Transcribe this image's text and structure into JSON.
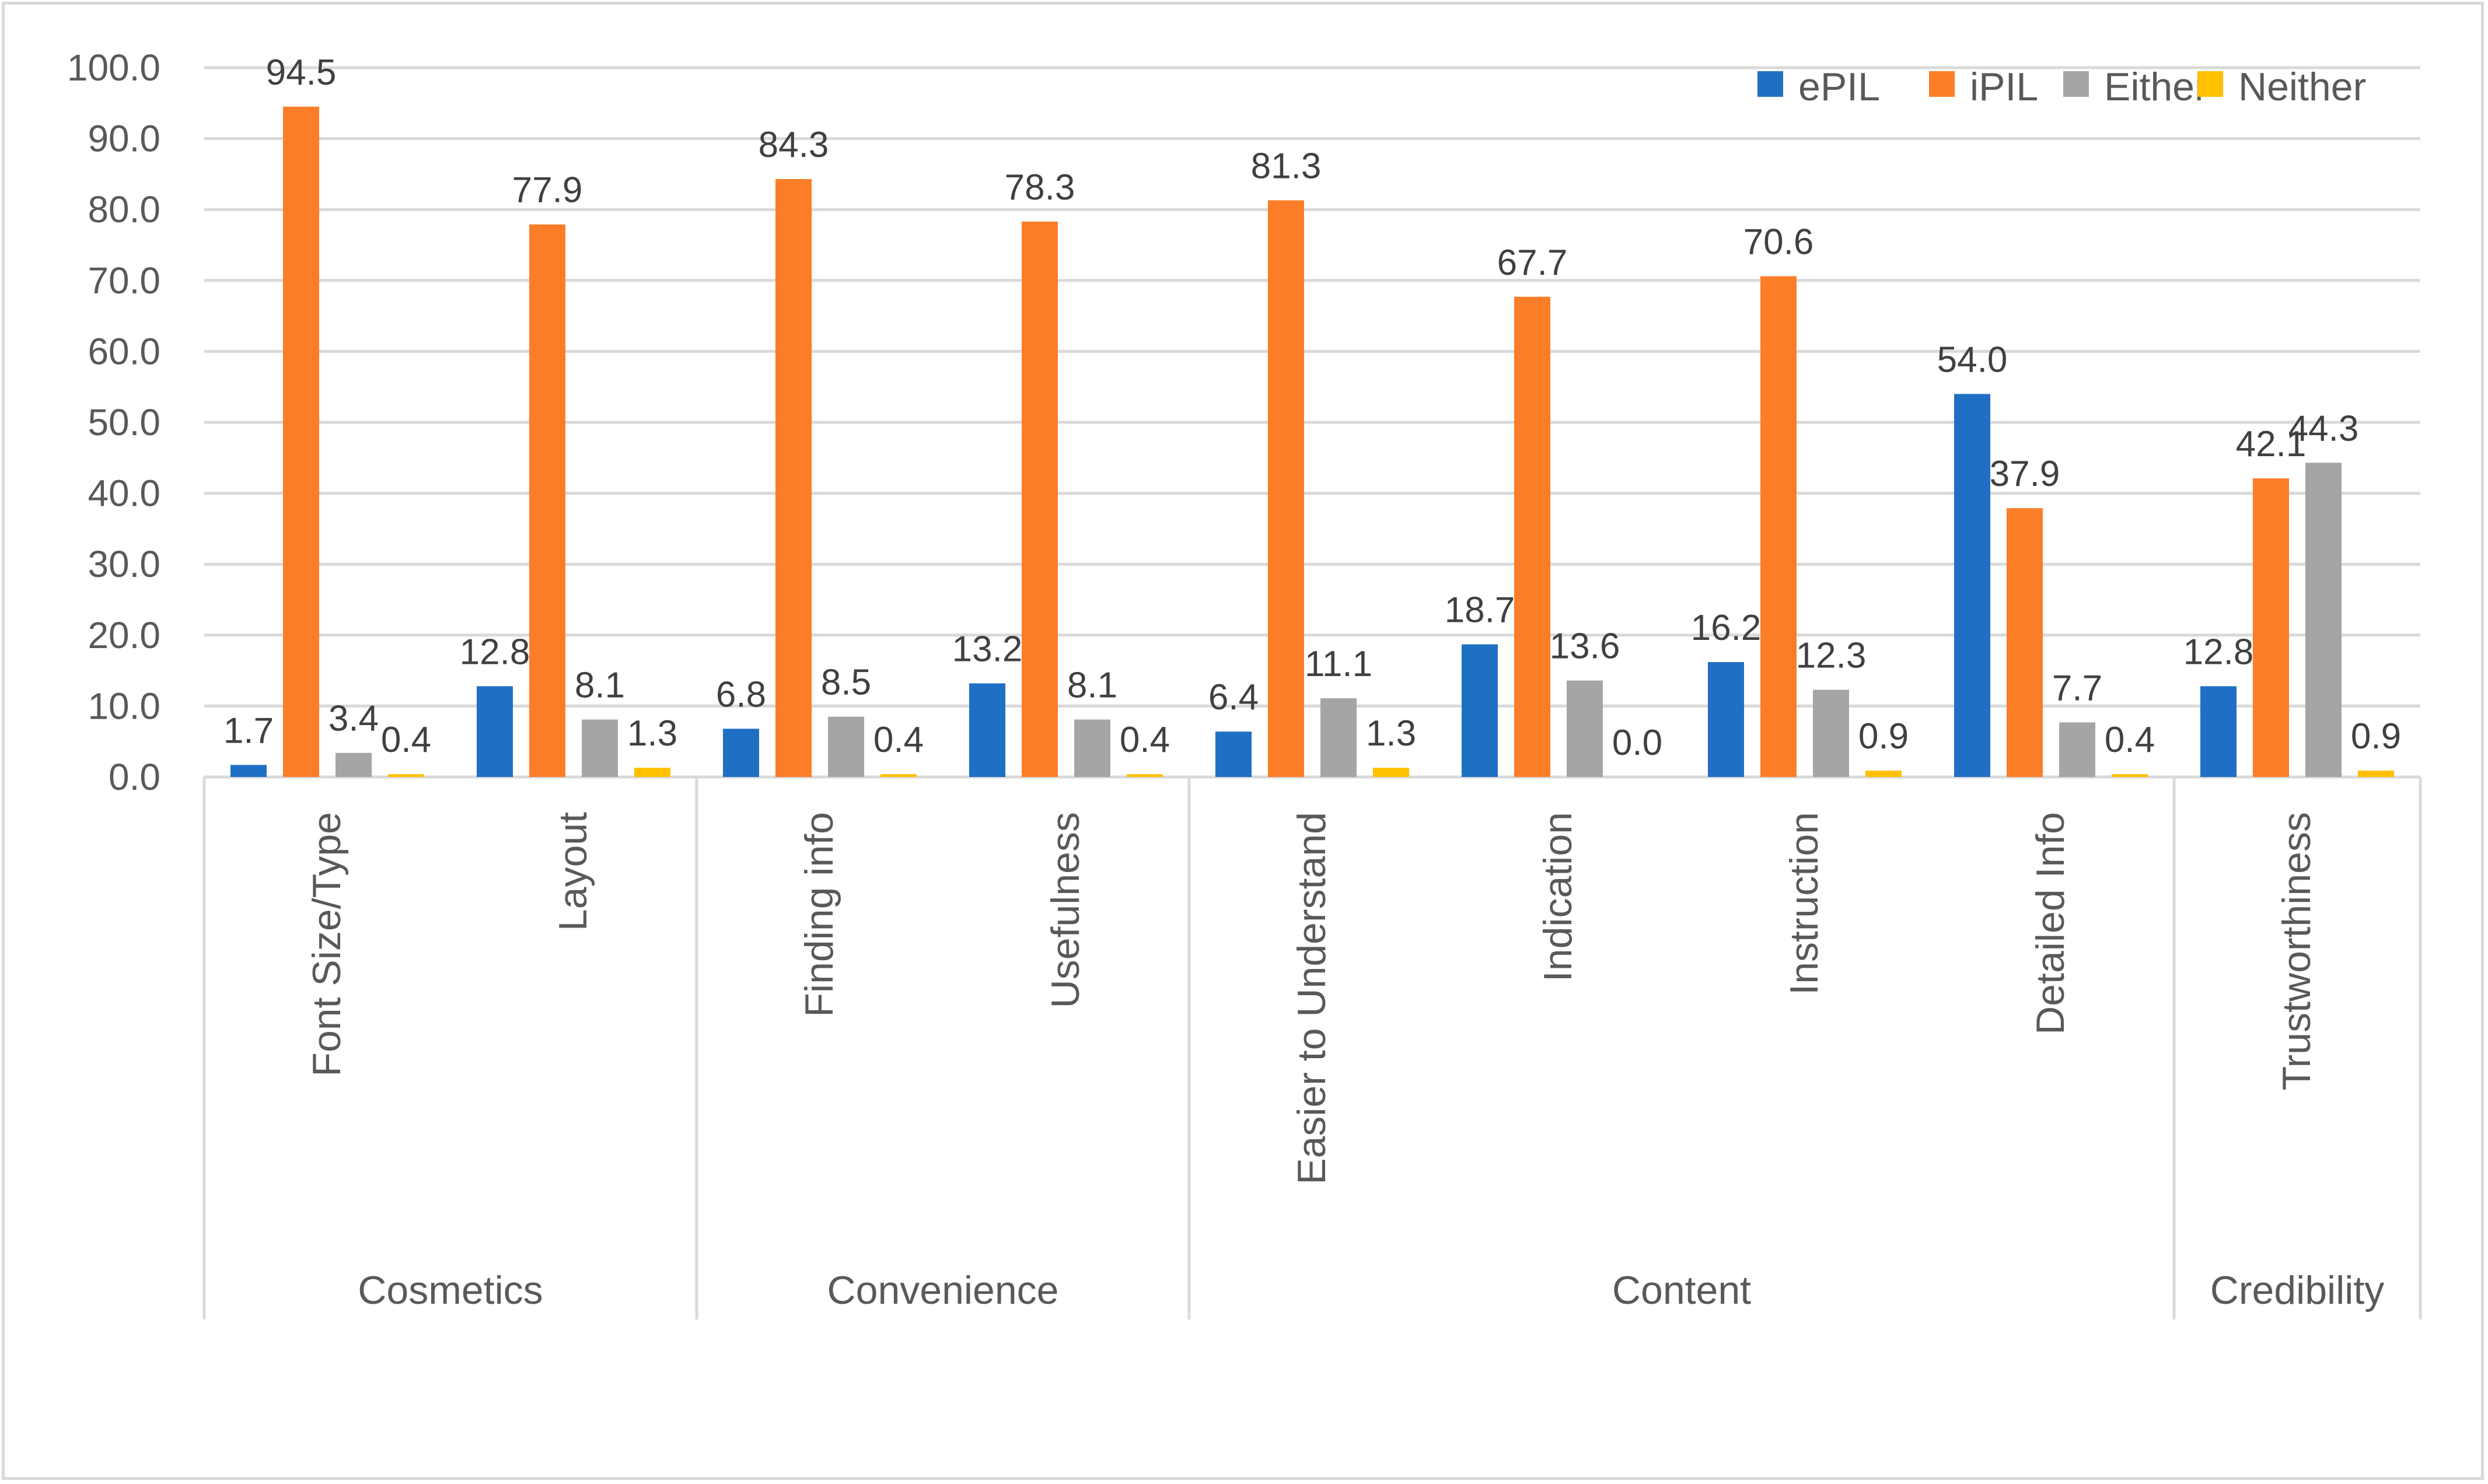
{
  "chart_data": {
    "type": "bar",
    "title": "",
    "xlabel": "",
    "ylabel": "",
    "ylim": [
      0,
      100
    ],
    "ytick_step": 10,
    "ytick_labels": [
      "0.0",
      "10.0",
      "20.0",
      "30.0",
      "40.0",
      "50.0",
      "60.0",
      "70.0",
      "80.0",
      "90.0",
      "100.0"
    ],
    "grid": true,
    "legend_position": "top-right",
    "categories": [
      "Font Size/Type",
      "Layout",
      "Finding info",
      "Usefulness",
      "Easier to Understand",
      "Indication",
      "Instruction",
      "Detailed Info",
      "Trustworthiness"
    ],
    "groups": [
      {
        "label": "Cosmetics",
        "span": 2
      },
      {
        "label": "Convenience",
        "span": 2
      },
      {
        "label": "Content",
        "span": 4
      },
      {
        "label": "Credibility",
        "span": 1
      }
    ],
    "series": [
      {
        "name": "ePIL",
        "color": "#1f6fc5",
        "values": [
          1.7,
          12.8,
          6.8,
          13.2,
          6.4,
          18.7,
          16.2,
          54.0,
          12.8
        ]
      },
      {
        "name": "iPIL",
        "color": "#fb7d27",
        "values": [
          94.5,
          77.9,
          84.3,
          78.3,
          81.3,
          67.7,
          70.6,
          37.9,
          42.1
        ]
      },
      {
        "name": "Either",
        "color": "#a5a5a5",
        "values": [
          3.4,
          8.1,
          8.5,
          8.1,
          11.1,
          13.6,
          12.3,
          7.7,
          44.3
        ]
      },
      {
        "name": "Neither",
        "color": "#ffc000",
        "values": [
          0.4,
          1.3,
          0.4,
          0.4,
          1.3,
          0.0,
          0.9,
          0.4,
          0.9
        ]
      }
    ]
  }
}
